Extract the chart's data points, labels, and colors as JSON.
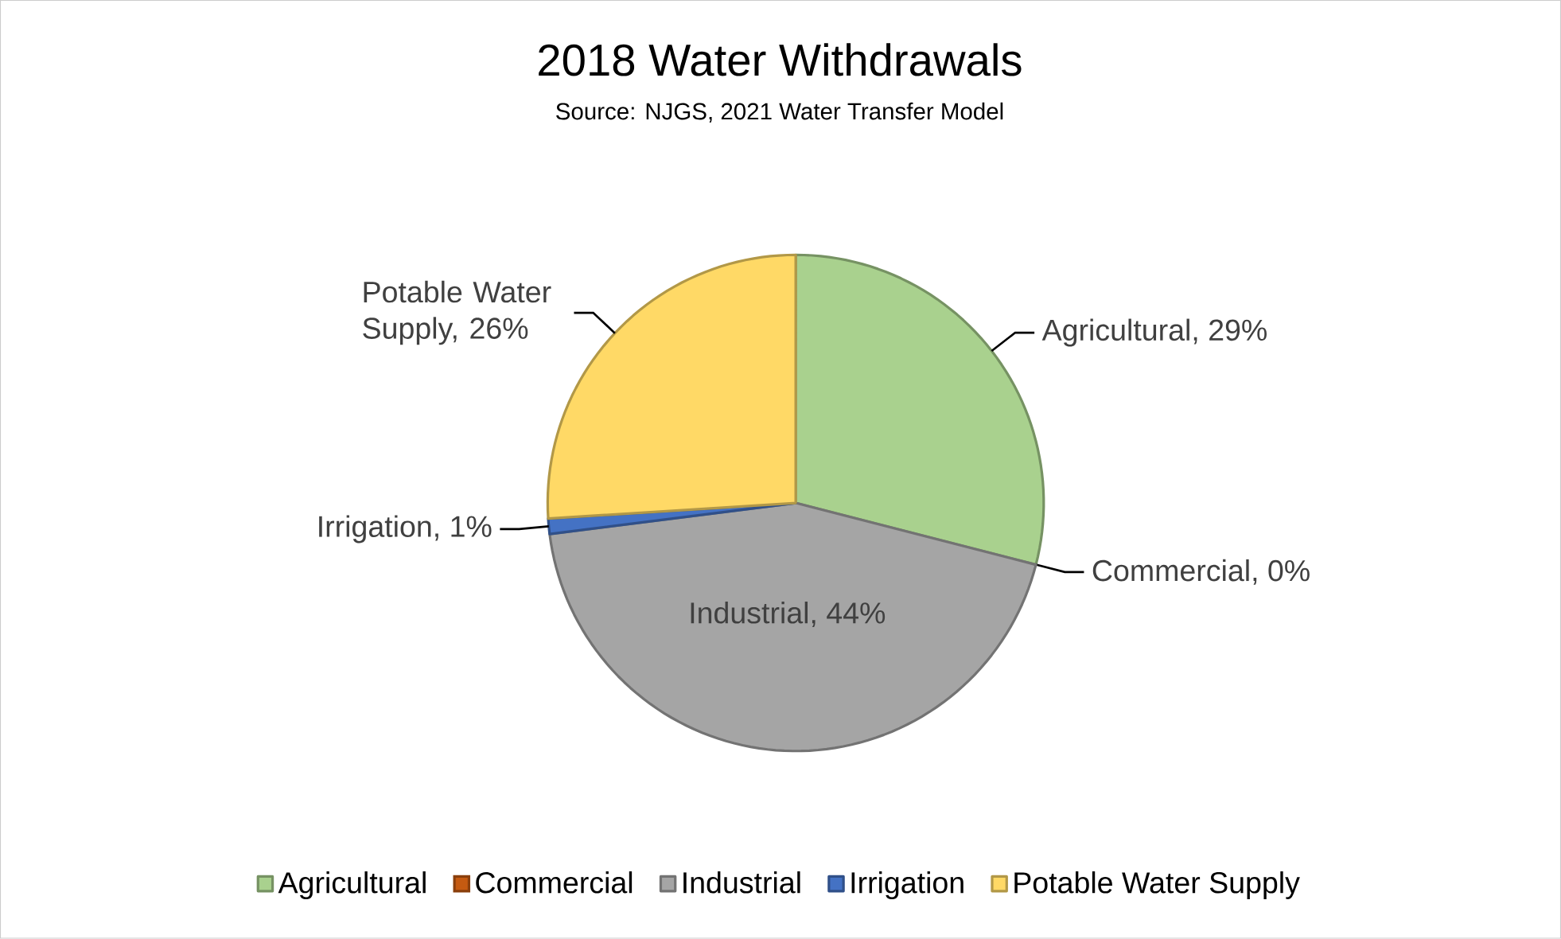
{
  "chart_data": {
    "type": "pie",
    "title": "2018 Water Withdrawals",
    "subtitle": "Source: NJGS, 2021 Water Transfer Model",
    "categories": [
      "Agricultural",
      "Commercial",
      "Industrial",
      "Irrigation",
      "Potable Water Supply"
    ],
    "values": [
      29,
      0,
      44,
      1,
      26
    ],
    "value_labels": [
      "Agricultural, 29%",
      "Commercial, 0%",
      "Industrial, 44%",
      "Irrigation, 1%",
      "Potable Water Supply, 26%"
    ],
    "colors": [
      "#a9d18e",
      "#c55a11",
      "#a5a5a5",
      "#4472c4",
      "#ffd966"
    ],
    "legend": "bottom"
  }
}
